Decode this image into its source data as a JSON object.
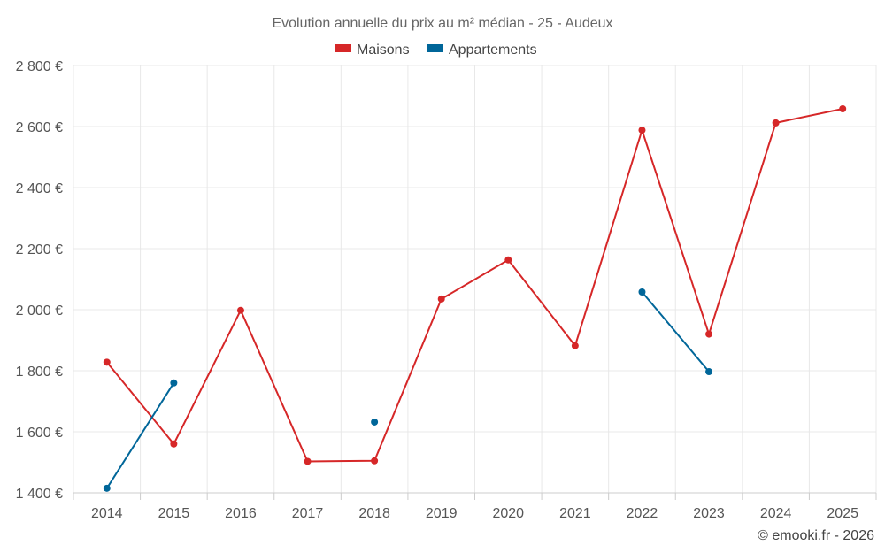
{
  "chart_data": {
    "type": "line",
    "title": "Evolution annuelle du prix au m² médian - 25 - Audeux",
    "x": [
      "2014",
      "2015",
      "2016",
      "2017",
      "2018",
      "2019",
      "2020",
      "2021",
      "2022",
      "2023",
      "2024",
      "2025"
    ],
    "ylim": [
      1400,
      2800
    ],
    "yticks": [
      1400,
      1600,
      1800,
      2000,
      2200,
      2400,
      2600,
      2800
    ],
    "ytick_labels": [
      "1 400 €",
      "1 600 €",
      "1 800 €",
      "2 000 €",
      "2 200 €",
      "2 400 €",
      "2 600 €",
      "2 800 €"
    ],
    "grid": true,
    "legend_position": "top-center",
    "series": [
      {
        "name": "Maisons",
        "color": "#d62728",
        "values": [
          1828,
          1560,
          1998,
          1503,
          1505,
          2035,
          2163,
          1882,
          2588,
          1920,
          2612,
          2658
        ]
      },
      {
        "name": "Appartements",
        "color": "#006699",
        "values": [
          1415,
          1760,
          null,
          null,
          1632,
          null,
          null,
          null,
          2058,
          1797,
          null,
          null
        ]
      }
    ]
  },
  "credit": "© emooki.fr - 2026"
}
